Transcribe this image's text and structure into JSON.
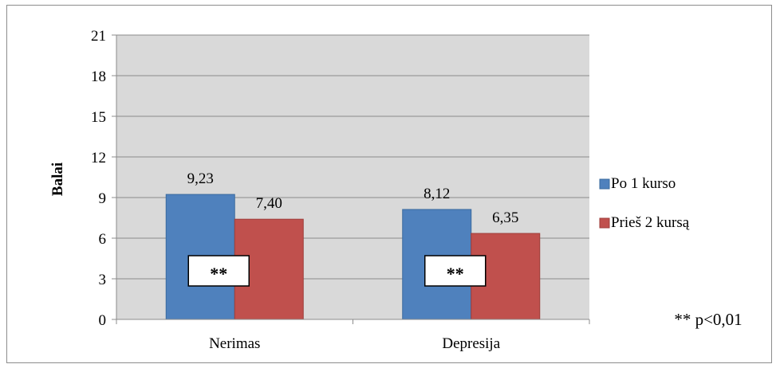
{
  "chart_data": {
    "type": "bar",
    "title": "",
    "xlabel": "",
    "ylabel": "Balai",
    "ylim": [
      0,
      21
    ],
    "yticks": [
      0,
      3,
      6,
      9,
      12,
      15,
      18,
      21
    ],
    "ytick_labels": [
      "0",
      "3",
      "6",
      "9",
      "12",
      "15",
      "18",
      "21"
    ],
    "grid": true,
    "legend_position": "right",
    "categories": [
      "Nerimas",
      "Depresija"
    ],
    "series": [
      {
        "name": "Po 1 kurso",
        "color": "#4f81bd",
        "values": [
          9.23,
          8.12
        ],
        "labels": [
          "9,23",
          "8,12"
        ]
      },
      {
        "name": "Prieš 2 kursą",
        "color": "#c0504d",
        "values": [
          7.4,
          6.35
        ],
        "labels": [
          "7,40",
          "6,35"
        ]
      }
    ],
    "significance_markers": [
      "**",
      "**"
    ],
    "footnote": "** p<0,01"
  }
}
